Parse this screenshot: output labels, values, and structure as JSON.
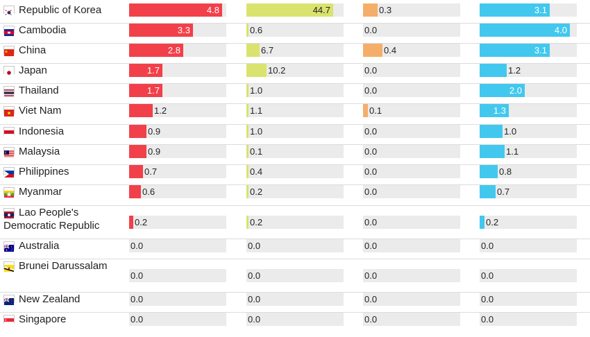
{
  "chart_data": {
    "type": "bar",
    "categories": [
      "Republic of Korea",
      "Cambodia",
      "China",
      "Japan",
      "Thailand",
      "Viet Nam",
      "Indonesia",
      "Malaysia",
      "Philippines",
      "Myanmar",
      "Lao People's Democratic Republic",
      "Australia",
      "Brunei Darussalam",
      "New Zealand",
      "Singapore"
    ],
    "series": [
      {
        "color": "#f2404a",
        "max": 5.0,
        "values": [
          4.8,
          3.3,
          2.8,
          1.7,
          1.7,
          1.2,
          0.9,
          0.9,
          0.7,
          0.6,
          0.2,
          0.0,
          0.0,
          0.0,
          0.0
        ]
      },
      {
        "color": "#d9e36d",
        "max": 50.0,
        "values": [
          44.7,
          0.6,
          6.7,
          10.2,
          1.0,
          1.1,
          1.0,
          0.1,
          0.4,
          0.2,
          0.2,
          0.0,
          0.0,
          0.0,
          0.0
        ]
      },
      {
        "color": "#f5ae6a",
        "max": 2.0,
        "values": [
          0.3,
          0.0,
          0.4,
          0.0,
          0.0,
          0.1,
          0.0,
          0.0,
          0.0,
          0.0,
          0.0,
          0.0,
          0.0,
          0.0,
          0.0
        ]
      },
      {
        "color": "#42c8ee",
        "max": 4.3,
        "values": [
          3.1,
          4.0,
          3.1,
          1.2,
          2.0,
          1.3,
          1.0,
          1.1,
          0.8,
          0.7,
          0.2,
          0.0,
          0.0,
          0.0,
          0.0
        ]
      }
    ],
    "grid": false,
    "legend": "none"
  },
  "flags": [
    "korea-flag-icon",
    "cambodia-flag-icon",
    "china-flag-icon",
    "japan-flag-icon",
    "thailand-flag-icon",
    "viet-nam-flag-icon",
    "indonesia-flag-icon",
    "malaysia-flag-icon",
    "philippines-flag-icon",
    "myanmar-flag-icon",
    "lao-flag-icon",
    "australia-flag-icon",
    "brunei-flag-icon",
    "new-zealand-flag-icon",
    "singapore-flag-icon"
  ]
}
